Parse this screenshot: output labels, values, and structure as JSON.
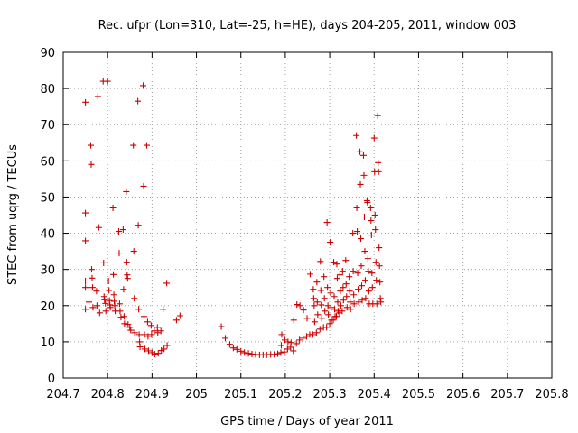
{
  "chart_data": {
    "type": "scatter",
    "title": "Rec. ufpr (Lon=310, Lat=-25, h=HE), days 204-205, 2011, window 003",
    "xlabel": "GPS time / Days of year 2011",
    "ylabel": "STEC from uqrg / TECUs",
    "xlim": [
      204.7,
      205.8
    ],
    "ylim": [
      0,
      90
    ],
    "xticks": [
      204.7,
      204.8,
      204.9,
      205,
      205.1,
      205.2,
      205.3,
      205.4,
      205.5,
      205.6,
      205.7,
      205.8
    ],
    "xtick_labels": [
      "204.7",
      "204.8",
      "204.9",
      "205",
      "205.1",
      "205.2",
      "205.3",
      "205.4",
      "205.5",
      "205.6",
      "205.7",
      "205.8"
    ],
    "yticks": [
      0,
      10,
      20,
      30,
      40,
      50,
      60,
      70,
      80,
      90
    ],
    "ytick_labels": [
      "0",
      "10",
      "20",
      "30",
      "40",
      "50",
      "60",
      "70",
      "80",
      "90"
    ],
    "grid": true,
    "marker": "+",
    "color": "#cc0000",
    "points": [
      [
        204.75,
        76.2
      ],
      [
        204.75,
        45.6
      ],
      [
        204.75,
        37.9
      ],
      [
        204.75,
        26.8
      ],
      [
        204.75,
        25.0
      ],
      [
        204.75,
        19.0
      ],
      [
        204.758,
        21.0
      ],
      [
        204.762,
        64.3
      ],
      [
        204.763,
        59.0
      ],
      [
        204.764,
        30.0
      ],
      [
        204.765,
        27.6
      ],
      [
        204.766,
        25.0
      ],
      [
        204.767,
        19.5
      ],
      [
        204.775,
        24.0
      ],
      [
        204.776,
        20.0
      ],
      [
        204.778,
        77.8
      ],
      [
        204.78,
        41.6
      ],
      [
        204.782,
        18.0
      ],
      [
        204.79,
        82.0
      ],
      [
        204.791,
        31.8
      ],
      [
        204.792,
        22.5
      ],
      [
        204.793,
        21.6
      ],
      [
        204.795,
        20.6
      ],
      [
        204.796,
        18.5
      ],
      [
        204.8,
        82.0
      ],
      [
        204.802,
        26.8
      ],
      [
        204.803,
        24.2
      ],
      [
        204.804,
        21.4
      ],
      [
        204.805,
        20.2
      ],
      [
        204.806,
        19.5
      ],
      [
        204.812,
        47.0
      ],
      [
        204.813,
        28.6
      ],
      [
        204.814,
        23.0
      ],
      [
        204.815,
        21.2
      ],
      [
        204.816,
        20.0
      ],
      [
        204.817,
        18.5
      ],
      [
        204.825,
        40.5
      ],
      [
        204.826,
        34.5
      ],
      [
        204.827,
        20.5
      ],
      [
        204.828,
        18.5
      ],
      [
        204.83,
        16.8
      ],
      [
        204.835,
        41.0
      ],
      [
        204.836,
        24.5
      ],
      [
        204.837,
        17.0
      ],
      [
        204.838,
        15.0
      ],
      [
        204.842,
        51.5
      ],
      [
        204.843,
        32.0
      ],
      [
        204.844,
        28.5
      ],
      [
        204.845,
        27.5
      ],
      [
        204.846,
        14.8
      ],
      [
        204.85,
        14.0
      ],
      [
        204.852,
        13.2
      ],
      [
        204.858,
        64.3
      ],
      [
        204.859,
        35.0
      ],
      [
        204.86,
        22.0
      ],
      [
        204.861,
        12.5
      ],
      [
        204.868,
        76.5
      ],
      [
        204.869,
        42.2
      ],
      [
        204.87,
        19.0
      ],
      [
        204.871,
        12.0
      ],
      [
        204.872,
        10.0
      ],
      [
        204.873,
        8.6
      ],
      [
        204.88,
        80.8
      ],
      [
        204.881,
        53.0
      ],
      [
        204.882,
        17.0
      ],
      [
        204.883,
        12.0
      ],
      [
        204.884,
        8.0
      ],
      [
        204.888,
        64.3
      ],
      [
        204.89,
        15.5
      ],
      [
        204.891,
        11.5
      ],
      [
        204.892,
        7.5
      ],
      [
        204.898,
        14.5
      ],
      [
        204.899,
        12.0
      ],
      [
        204.9,
        7.0
      ],
      [
        204.905,
        13.0
      ],
      [
        204.906,
        6.6
      ],
      [
        204.912,
        14.0
      ],
      [
        204.913,
        12.5
      ],
      [
        204.914,
        6.8
      ],
      [
        204.92,
        13.0
      ],
      [
        204.921,
        7.6
      ],
      [
        204.925,
        19.0
      ],
      [
        204.927,
        8.0
      ],
      [
        204.933,
        26.2
      ],
      [
        204.934,
        9.0
      ],
      [
        204.955,
        16.0
      ],
      [
        204.963,
        17.2
      ],
      [
        205.056,
        14.2
      ],
      [
        205.065,
        11.0
      ],
      [
        205.075,
        9.3
      ],
      [
        205.083,
        8.3
      ],
      [
        205.091,
        7.9
      ],
      [
        205.1,
        7.4
      ],
      [
        205.108,
        7.0
      ],
      [
        205.117,
        6.8
      ],
      [
        205.125,
        6.6
      ],
      [
        205.133,
        6.5
      ],
      [
        205.142,
        6.4
      ],
      [
        205.15,
        6.4
      ],
      [
        205.158,
        6.4
      ],
      [
        205.167,
        6.5
      ],
      [
        205.175,
        6.5
      ],
      [
        205.183,
        6.7
      ],
      [
        205.19,
        7.0
      ],
      [
        205.191,
        9.0
      ],
      [
        205.192,
        12.0
      ],
      [
        205.198,
        7.2
      ],
      [
        205.199,
        10.5
      ],
      [
        205.205,
        8.0
      ],
      [
        205.206,
        10.0
      ],
      [
        205.212,
        8.5
      ],
      [
        205.213,
        9.8
      ],
      [
        205.218,
        7.5
      ],
      [
        205.219,
        16.0
      ],
      [
        205.225,
        9.5
      ],
      [
        205.226,
        20.3
      ],
      [
        205.232,
        10.5
      ],
      [
        205.233,
        20.0
      ],
      [
        205.24,
        11.0
      ],
      [
        205.241,
        18.8
      ],
      [
        205.248,
        11.5
      ],
      [
        205.249,
        16.5
      ],
      [
        205.255,
        12.0
      ],
      [
        205.256,
        28.7
      ],
      [
        205.262,
        12.0
      ],
      [
        205.263,
        24.5
      ],
      [
        205.264,
        22.0
      ],
      [
        205.265,
        20.0
      ],
      [
        205.266,
        15.5
      ],
      [
        205.27,
        12.5
      ],
      [
        205.271,
        26.5
      ],
      [
        205.272,
        21.0
      ],
      [
        205.273,
        17.5
      ],
      [
        205.278,
        13.5
      ],
      [
        205.279,
        32.2
      ],
      [
        205.28,
        24.2
      ],
      [
        205.281,
        20.2
      ],
      [
        205.282,
        16.5
      ],
      [
        205.286,
        14.0
      ],
      [
        205.287,
        28.0
      ],
      [
        205.288,
        22.0
      ],
      [
        205.289,
        18.5
      ],
      [
        205.293,
        14.0
      ],
      [
        205.294,
        43.0
      ],
      [
        205.295,
        25.0
      ],
      [
        205.296,
        20.0
      ],
      [
        205.297,
        17.5
      ],
      [
        205.3,
        15.0
      ],
      [
        205.301,
        37.5
      ],
      [
        205.302,
        23.5
      ],
      [
        205.303,
        19.5
      ],
      [
        205.304,
        16.0
      ],
      [
        205.308,
        16.0
      ],
      [
        205.309,
        32.0
      ],
      [
        205.31,
        22.5
      ],
      [
        205.311,
        19.0
      ],
      [
        205.312,
        17.0
      ],
      [
        205.315,
        17.0
      ],
      [
        205.316,
        31.5
      ],
      [
        205.317,
        27.5
      ],
      [
        205.318,
        21.0
      ],
      [
        205.319,
        18.5
      ],
      [
        205.322,
        18.0
      ],
      [
        205.323,
        28.5
      ],
      [
        205.324,
        24.0
      ],
      [
        205.325,
        20.0
      ],
      [
        205.328,
        18.5
      ],
      [
        205.329,
        29.5
      ],
      [
        205.33,
        25.0
      ],
      [
        205.331,
        21.5
      ],
      [
        205.336,
        32.5
      ],
      [
        205.337,
        26.0
      ],
      [
        205.338,
        22.5
      ],
      [
        205.339,
        19.5
      ],
      [
        205.344,
        28.0
      ],
      [
        205.345,
        24.0
      ],
      [
        205.346,
        21.0
      ],
      [
        205.347,
        19.0
      ],
      [
        205.352,
        40.0
      ],
      [
        205.353,
        29.5
      ],
      [
        205.354,
        23.0
      ],
      [
        205.355,
        20.5
      ],
      [
        205.36,
        67.0
      ],
      [
        205.361,
        47.0
      ],
      [
        205.362,
        40.5
      ],
      [
        205.363,
        29.0
      ],
      [
        205.364,
        24.5
      ],
      [
        205.365,
        21.0
      ],
      [
        205.368,
        62.5
      ],
      [
        205.369,
        53.5
      ],
      [
        205.37,
        38.5
      ],
      [
        205.371,
        31.0
      ],
      [
        205.372,
        25.5
      ],
      [
        205.373,
        21.5
      ],
      [
        205.376,
        61.5
      ],
      [
        205.377,
        56.0
      ],
      [
        205.378,
        44.5
      ],
      [
        205.379,
        35.0
      ],
      [
        205.38,
        27.0
      ],
      [
        205.381,
        22.0
      ],
      [
        205.384,
        49.0
      ],
      [
        205.385,
        48.5
      ],
      [
        205.386,
        33.0
      ],
      [
        205.387,
        29.5
      ],
      [
        205.388,
        24.0
      ],
      [
        205.389,
        20.5
      ],
      [
        205.392,
        47.0
      ],
      [
        205.393,
        43.5
      ],
      [
        205.394,
        39.5
      ],
      [
        205.395,
        29.0
      ],
      [
        205.396,
        25.0
      ],
      [
        205.397,
        20.5
      ],
      [
        205.4,
        66.3
      ],
      [
        205.401,
        57.0
      ],
      [
        205.402,
        45.0
      ],
      [
        205.403,
        41.0
      ],
      [
        205.404,
        32.0
      ],
      [
        205.405,
        27.0
      ],
      [
        205.406,
        20.5
      ],
      [
        205.408,
        72.5
      ],
      [
        205.409,
        59.5
      ],
      [
        205.41,
        57.0
      ],
      [
        205.411,
        36.0
      ],
      [
        205.412,
        31.0
      ],
      [
        205.413,
        26.5
      ],
      [
        205.414,
        22.0
      ],
      [
        205.415,
        21.0
      ]
    ]
  }
}
